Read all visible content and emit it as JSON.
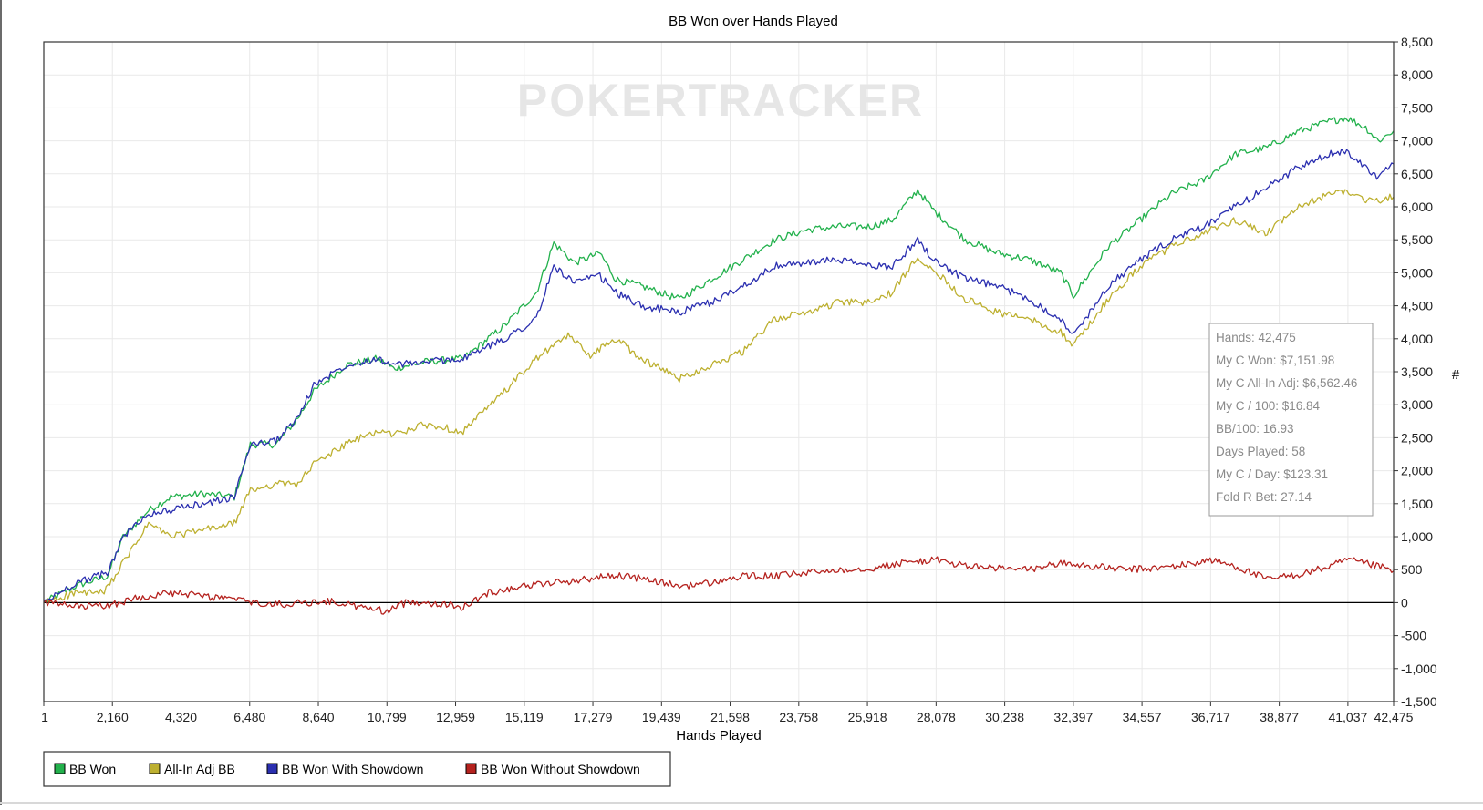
{
  "chart_data": {
    "type": "line",
    "title": "BB Won over Hands Played",
    "xlabel": "Hands Played",
    "ylabel": "#",
    "watermark": "POKERTRACKER",
    "xlim": [
      1,
      42475
    ],
    "ylim": [
      -1500,
      8500
    ],
    "x_ticks": [
      1,
      2160,
      4320,
      6480,
      8640,
      10799,
      12959,
      15119,
      17279,
      19439,
      21598,
      23758,
      25918,
      28078,
      30238,
      32397,
      34557,
      36717,
      38877,
      41037,
      42475
    ],
    "x_tick_labels": [
      "1",
      "2,160",
      "4,320",
      "6,480",
      "8,640",
      "10,799",
      "12,959",
      "15,119",
      "17,279",
      "19,439",
      "21,598",
      "23,758",
      "25,918",
      "28,078",
      "30,238",
      "32,397",
      "34,557",
      "36,717",
      "38,877",
      "41,037",
      "42,475"
    ],
    "y_ticks": [
      -1500,
      -1000,
      -500,
      0,
      500,
      1000,
      1500,
      2000,
      2500,
      3000,
      3500,
      4000,
      4500,
      5000,
      5500,
      6000,
      6500,
      7000,
      7500,
      8000,
      8500
    ],
    "y_tick_labels": [
      "-1,500",
      "-1,000",
      "-500",
      "0",
      "500",
      "1,000",
      "1,500",
      "2,000",
      "2,500",
      "3,000",
      "3,500",
      "4,000",
      "4,500",
      "5,000",
      "5,500",
      "6,000",
      "6,500",
      "7,000",
      "7,500",
      "8,000",
      "8,500"
    ],
    "grid": true,
    "legend_position": "bottom-left",
    "zero_line": true,
    "series": [
      {
        "name": "BB Won",
        "color": "#22b14c",
        "x": [
          1,
          1000,
          2000,
          2500,
          3300,
          4000,
          5000,
          6000,
          6500,
          7300,
          8000,
          8500,
          9500,
          10500,
          11000,
          12000,
          13200,
          14500,
          15500,
          16050,
          16700,
          17500,
          18000,
          18800,
          20000,
          21000,
          22000,
          23000,
          24000,
          25000,
          26000,
          26700,
          27500,
          28000,
          29000,
          30000,
          31000,
          32000,
          32400,
          33500,
          34500,
          35500,
          36500,
          37500,
          38500,
          39500,
          40500,
          41000,
          41600,
          42000,
          42475
        ],
        "y": [
          0,
          250,
          400,
          1000,
          1400,
          1600,
          1650,
          1600,
          2400,
          2400,
          2800,
          3200,
          3600,
          3700,
          3550,
          3650,
          3700,
          4200,
          4700,
          5450,
          5150,
          5300,
          4900,
          4800,
          4600,
          4900,
          5200,
          5500,
          5650,
          5700,
          5700,
          5800,
          6250,
          5950,
          5500,
          5300,
          5200,
          5000,
          4650,
          5400,
          5800,
          6200,
          6400,
          6800,
          6900,
          7150,
          7300,
          7350,
          7200,
          7000,
          7150
        ]
      },
      {
        "name": "All-In Adj BB",
        "color": "#bdb030",
        "x": [
          1,
          1000,
          1900,
          2500,
          3300,
          4000,
          5000,
          6000,
          6500,
          7300,
          8000,
          8500,
          9500,
          10500,
          11000,
          12000,
          13200,
          14500,
          15500,
          16500,
          17200,
          18000,
          18800,
          20000,
          21000,
          22000,
          23000,
          24000,
          25000,
          26000,
          26700,
          27500,
          28000,
          29000,
          30000,
          31000,
          32000,
          32400,
          33500,
          34500,
          35500,
          36500,
          37500,
          38500,
          39500,
          40500,
          41000,
          41600,
          42000,
          42475
        ],
        "y": [
          0,
          150,
          150,
          600,
          1200,
          1000,
          1100,
          1200,
          1700,
          1800,
          1800,
          2100,
          2400,
          2600,
          2550,
          2700,
          2600,
          3200,
          3700,
          4050,
          3750,
          4000,
          3700,
          3400,
          3600,
          3800,
          4300,
          4400,
          4550,
          4550,
          4700,
          5250,
          5050,
          4600,
          4400,
          4300,
          4100,
          3900,
          4600,
          5100,
          5400,
          5600,
          5800,
          5600,
          6000,
          6200,
          6250,
          6100,
          6100,
          6150
        ]
      },
      {
        "name": "BB Won With Showdown",
        "color": "#2b2fb0",
        "x": [
          1,
          1000,
          2000,
          2500,
          3300,
          4000,
          5000,
          6000,
          6500,
          7300,
          8000,
          8500,
          9500,
          10500,
          11000,
          12000,
          13200,
          14500,
          15500,
          16050,
          16700,
          17500,
          18000,
          18800,
          20000,
          21000,
          22000,
          23000,
          24000,
          25000,
          26000,
          26700,
          27500,
          28000,
          29000,
          30000,
          31000,
          32000,
          32400,
          33500,
          34500,
          35500,
          36500,
          37500,
          38500,
          39500,
          40500,
          41000,
          41600,
          42000,
          42475
        ],
        "y": [
          0,
          300,
          450,
          1000,
          1350,
          1400,
          1500,
          1600,
          2400,
          2450,
          2800,
          3300,
          3600,
          3700,
          3600,
          3650,
          3700,
          4000,
          4300,
          5100,
          4850,
          4950,
          4700,
          4500,
          4400,
          4550,
          4800,
          5100,
          5150,
          5200,
          5100,
          5100,
          5500,
          5200,
          4900,
          4800,
          4600,
          4300,
          4050,
          4800,
          5200,
          5500,
          5700,
          6000,
          6300,
          6600,
          6800,
          6850,
          6600,
          6450,
          6650
        ]
      },
      {
        "name": "BB Won Without Showdown",
        "color": "#b5221e",
        "x": [
          1,
          1000,
          2000,
          3000,
          4000,
          5000,
          6000,
          7000,
          8000,
          9000,
          10000,
          10800,
          11500,
          12500,
          13200,
          14000,
          15000,
          16000,
          17000,
          18000,
          19000,
          20000,
          21000,
          22000,
          23000,
          24000,
          25000,
          26000,
          27000,
          28000,
          29000,
          30000,
          31000,
          32000,
          33000,
          34000,
          35000,
          36000,
          36700,
          37500,
          38500,
          39500,
          40500,
          41000,
          42000,
          42475
        ],
        "y": [
          0,
          -60,
          -50,
          80,
          150,
          100,
          50,
          -30,
          -10,
          20,
          -70,
          -130,
          20,
          -20,
          -70,
          150,
          250,
          300,
          350,
          420,
          350,
          250,
          300,
          400,
          400,
          450,
          500,
          520,
          600,
          650,
          560,
          520,
          500,
          600,
          550,
          500,
          520,
          580,
          650,
          550,
          350,
          430,
          550,
          650,
          550,
          480
        ]
      }
    ]
  },
  "stats": {
    "hands": "Hands: 42,475",
    "won": "My C Won: $7,151.98",
    "all_in_adj": "My C All-In Adj: $6,562.46",
    "per_100": "My C / 100: $16.84",
    "bb_100": "BB/100: 16.93",
    "days": "Days Played: 58",
    "per_day": "My C / Day: $123.31",
    "fold_r_bet": "Fold R Bet: 27.14"
  }
}
